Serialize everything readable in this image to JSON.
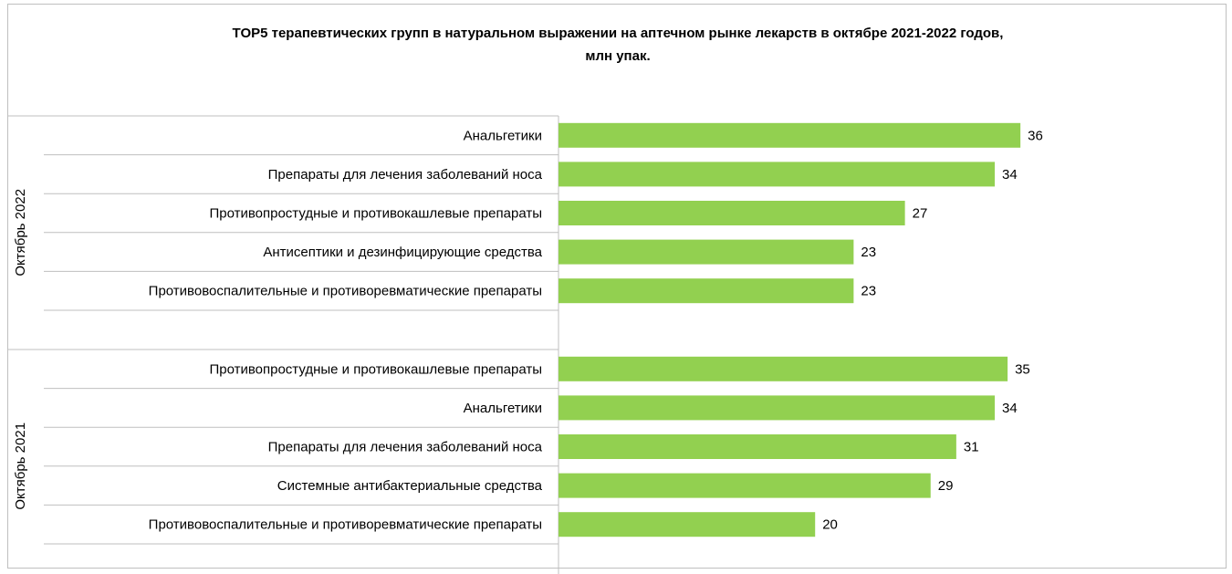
{
  "chart_data": {
    "type": "bar",
    "orientation": "horizontal",
    "title": "TOP5 терапевтических групп в натуральном  выражении на аптечном рынке лекарств в октябре 2021-2022 годов,",
    "subtitle": "млн упак.",
    "bar_color": "#92d050",
    "grid": false,
    "groups": [
      {
        "label": "Октябрь 2022",
        "categories": [
          "Анальгетики",
          "Препараты для лечения заболеваний носа",
          "Противопростудные и противокашлевые препараты",
          "Антисептики и дезинфицирующие средства",
          "Противовоспалительные и противоревматические препараты"
        ],
        "values": [
          36,
          34,
          27,
          23,
          23
        ]
      },
      {
        "label": "Октябрь 2021",
        "categories": [
          "Противопростудные и противокашлевые препараты",
          "Анальгетики",
          "Препараты для лечения заболеваний носа",
          "Системные антибактериальные средства",
          "Противовоспалительные и противоревматические препараты"
        ],
        "values": [
          35,
          34,
          31,
          29,
          20
        ]
      }
    ]
  }
}
